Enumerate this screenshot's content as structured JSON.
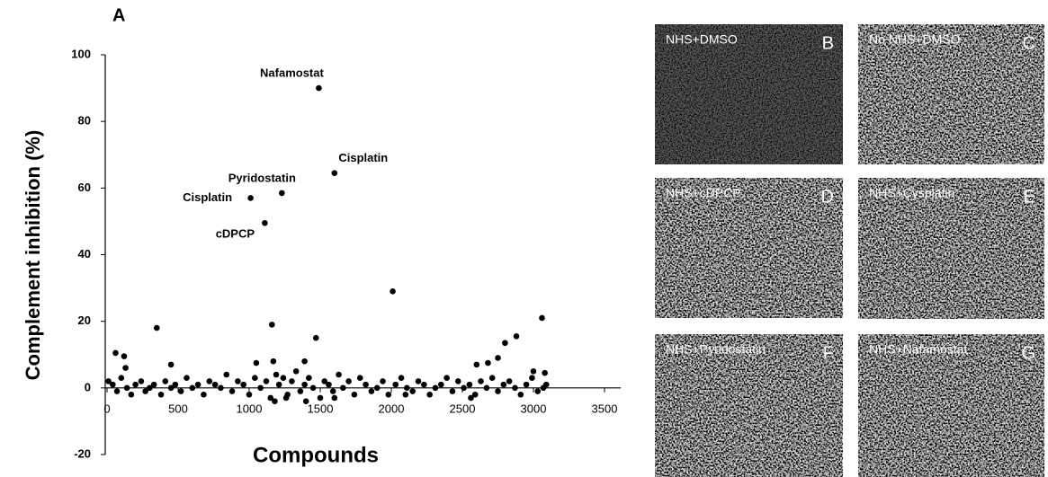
{
  "chart_data": {
    "type": "scatter",
    "panel_label": "A",
    "xlabel": "Compounds",
    "ylabel": "Complement inhibition (%)",
    "xlim": [
      0,
      3500
    ],
    "ylim": [
      -20,
      100
    ],
    "xticks": [
      0,
      500,
      1000,
      1500,
      2000,
      2500,
      3000,
      3500
    ],
    "yticks": [
      -20,
      0,
      20,
      40,
      60,
      80,
      100
    ],
    "color": "#000000",
    "series": [
      {
        "labels": [
          "Nafamostat",
          "Cisplatin",
          "Pyridostatin",
          "Cisplatin",
          "cDPCP"
        ],
        "x": [
          1490,
          1600,
          1230,
          1010,
          1110
        ],
        "y": [
          90,
          64.5,
          58.5,
          57,
          49.5
        ]
      },
      {
        "x": [
          10,
          40,
          70,
          100,
          140,
          170,
          200,
          240,
          270,
          300,
          330,
          380,
          410,
          450,
          480,
          520,
          560,
          600,
          640,
          680,
          720,
          760,
          800,
          840,
          880,
          920,
          960,
          1000,
          1040,
          1080,
          1120,
          1150,
          1190,
          1210,
          1240,
          1270,
          1300,
          1330,
          1360,
          1390,
          1420,
          1450,
          1500,
          1530,
          1560,
          1590,
          1630,
          1660,
          1700,
          1740,
          1780,
          1820,
          1860,
          1900,
          1940,
          1980,
          2030,
          2070,
          2110,
          2150,
          2190,
          2230,
          2270,
          2310,
          2350,
          2390,
          2430,
          2470,
          2510,
          2550,
          2590,
          2630,
          2670,
          2710,
          2750,
          2790,
          2830,
          2870,
          2910,
          2950,
          2990,
          3030,
          3070,
          3090,
          1180,
          1260,
          1400,
          1600,
          2100,
          2560,
          350,
          1160,
          1470,
          2010,
          3060,
          2800,
          2880,
          60,
          120,
          130,
          450,
          1050,
          1170,
          1390,
          2600,
          2680,
          2750,
          3000,
          3080
        ],
        "y": [
          2,
          1,
          -1,
          3,
          0,
          -2,
          1,
          2,
          -1,
          0,
          1,
          -2,
          2,
          0,
          1,
          -1,
          3,
          0,
          1,
          -2,
          2,
          1,
          0,
          4,
          -1,
          2,
          1,
          -2,
          3,
          0,
          2,
          -3,
          4,
          1,
          3,
          -2,
          2,
          5,
          -1,
          1,
          3,
          0,
          -3,
          2,
          1,
          -1,
          4,
          0,
          2,
          -2,
          3,
          1,
          -1,
          0,
          2,
          -2,
          1,
          3,
          0,
          -1,
          2,
          1,
          -2,
          0,
          1,
          3,
          -1,
          2,
          0,
          1,
          -2,
          2,
          0,
          3,
          -1,
          1,
          2,
          0,
          -2,
          1,
          3,
          -1,
          0,
          1,
          -4,
          -3,
          -4,
          -3,
          -2,
          -3,
          18,
          19,
          15,
          29,
          21,
          13.5,
          15.5,
          10.5,
          9.5,
          6,
          7,
          7.5,
          8,
          8,
          7,
          7.5,
          9,
          5,
          4.5
        ]
      }
    ]
  },
  "panels": [
    {
      "caption": "NHS+DMSO",
      "letter": "B"
    },
    {
      "caption": "No NHS+DMSO",
      "letter": "C"
    },
    {
      "caption": "NHS+cDPCP",
      "letter": "D"
    },
    {
      "caption": "NHS+Cysplatin",
      "letter": "E"
    },
    {
      "caption": "NHS+Pyridostatin",
      "letter": "F"
    },
    {
      "caption": "NHS+Nafamostat",
      "letter": "G"
    }
  ]
}
